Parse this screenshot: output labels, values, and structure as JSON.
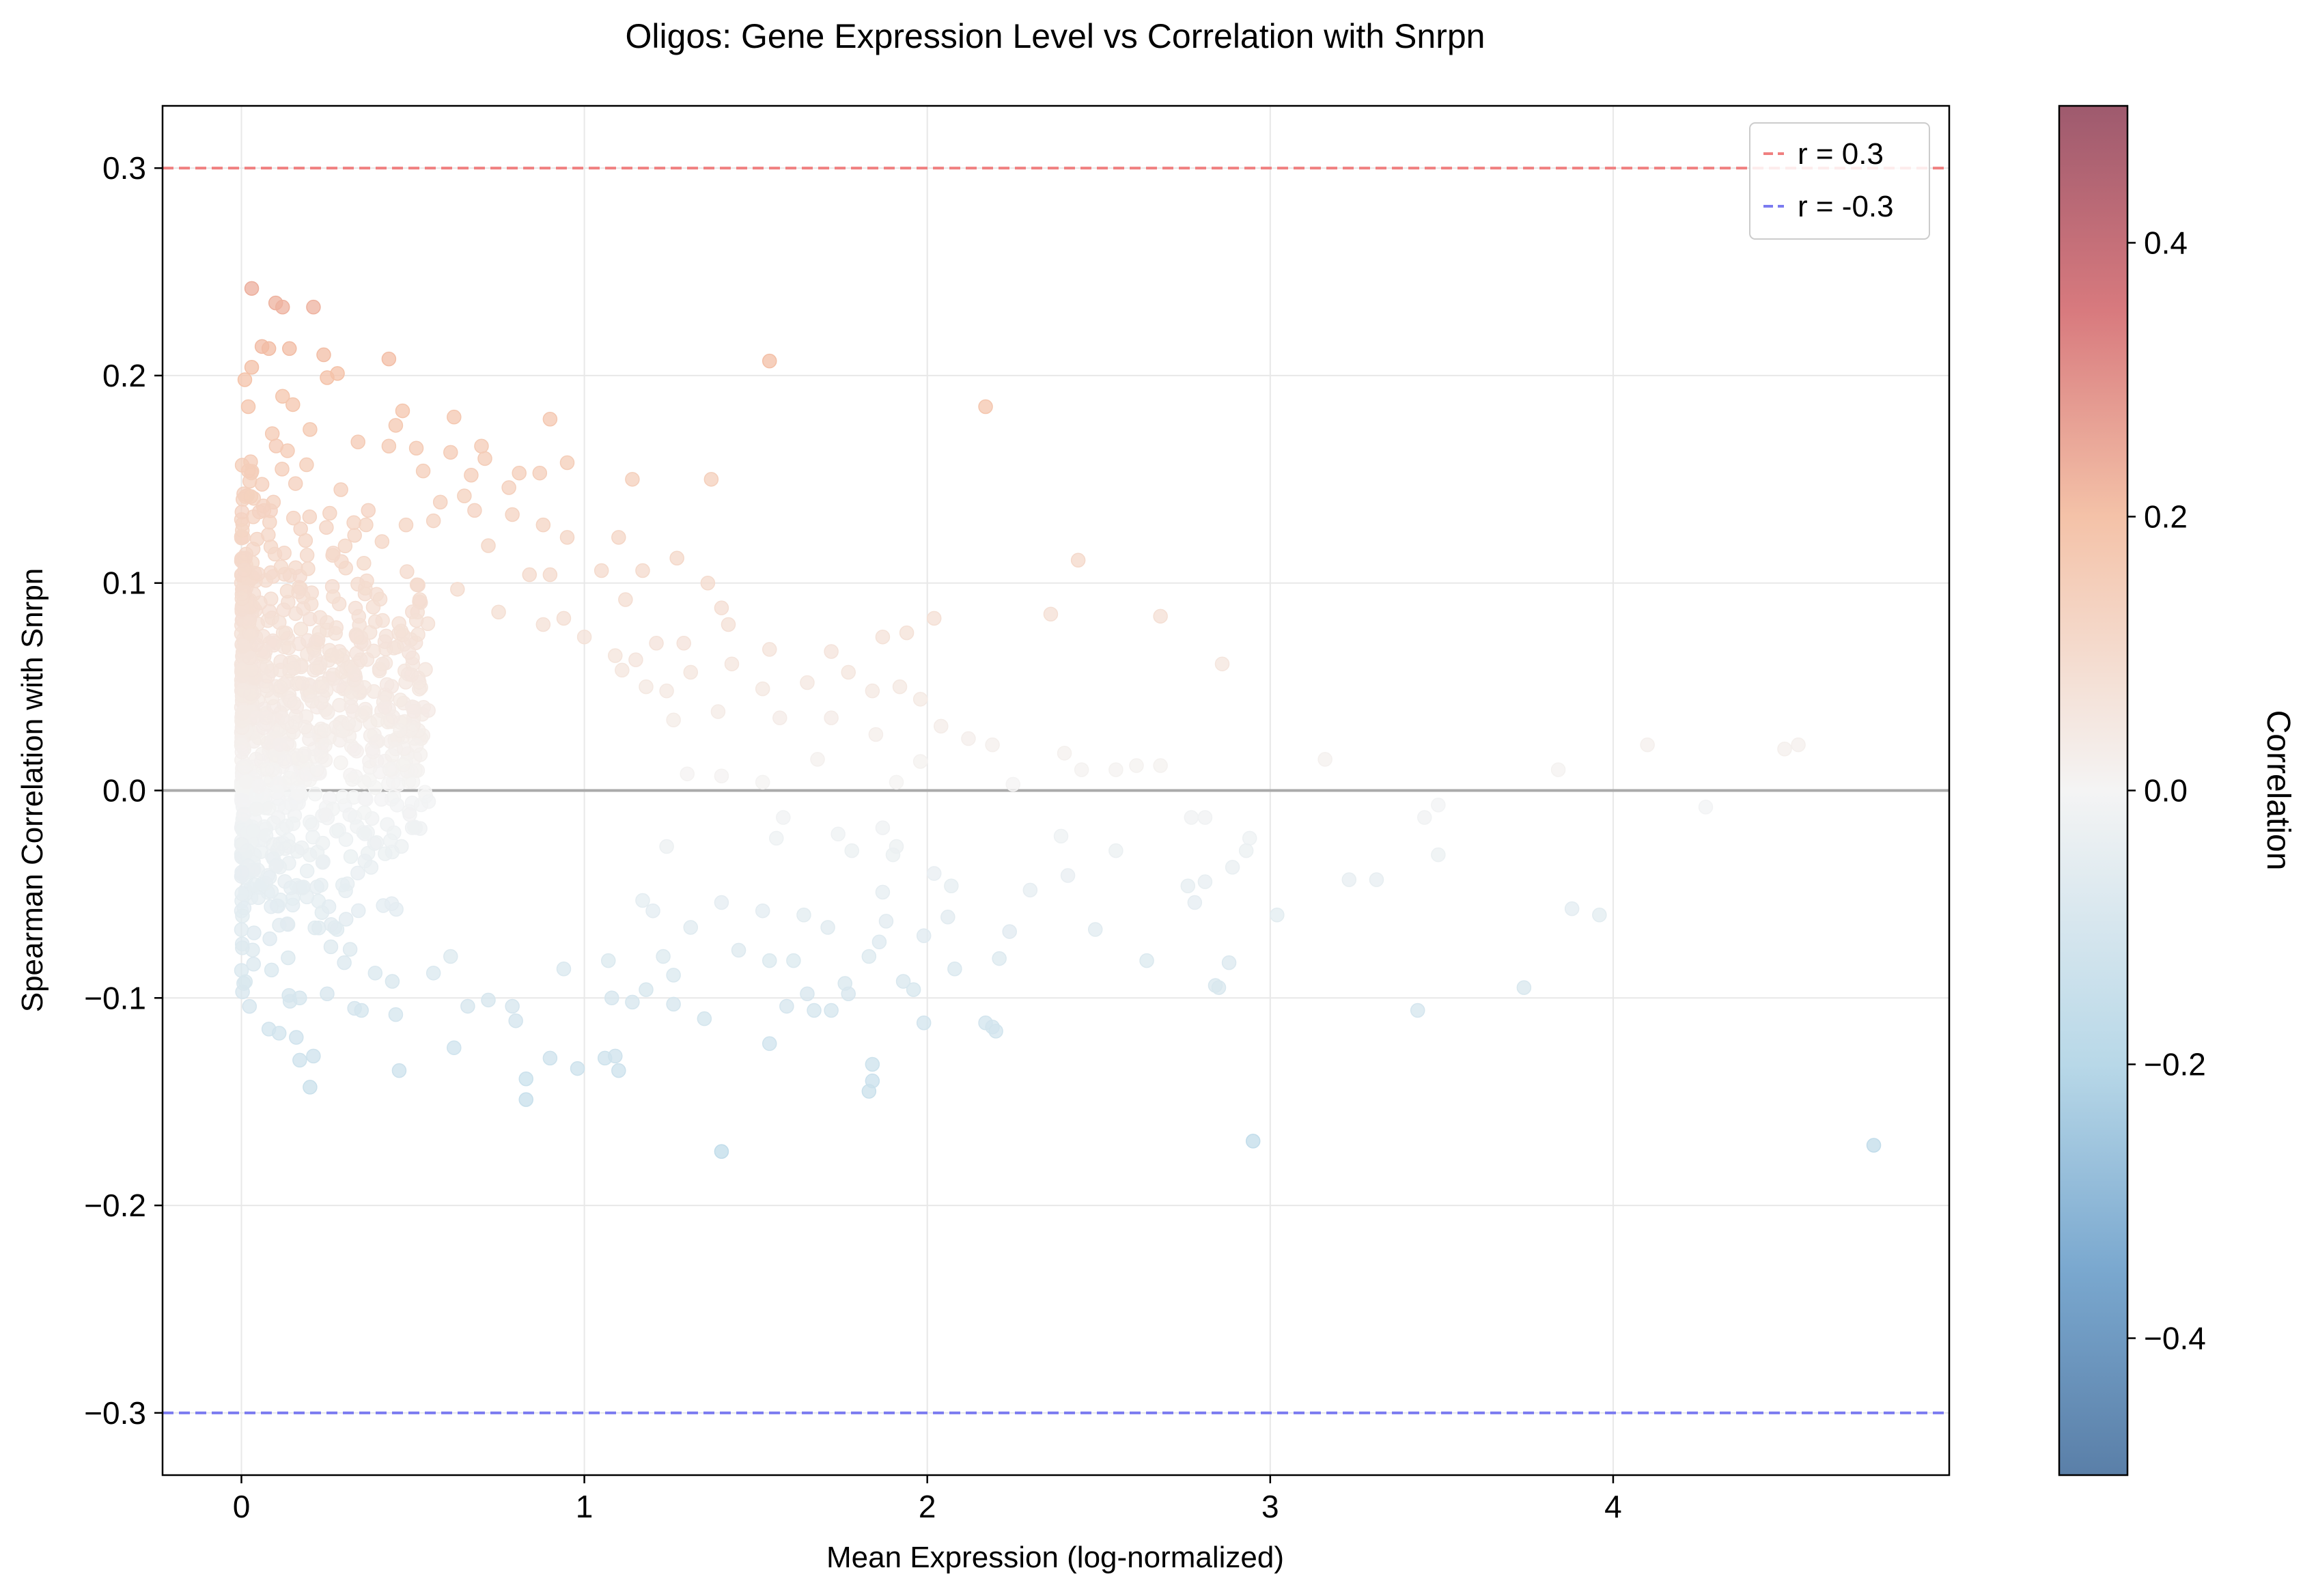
{
  "chart_data": {
    "type": "scatter",
    "title": "Oligos: Gene Expression Level vs Correlation with Snrpn",
    "xlabel": "Mean Expression (log-normalized)",
    "ylabel": "Spearman Correlation with Snrpn",
    "xlim": [
      -0.23,
      4.98
    ],
    "ylim": [
      -0.33,
      0.33
    ],
    "xticks": [
      0,
      1,
      2,
      3,
      4
    ],
    "yticks": [
      -0.3,
      -0.2,
      -0.1,
      0.0,
      0.1,
      0.2,
      0.3
    ],
    "xtick_labels": [
      "0",
      "1",
      "2",
      "3",
      "4"
    ],
    "ytick_labels": [
      "−0.3",
      "−0.2",
      "−0.1",
      "0.0",
      "0.1",
      "0.2",
      "0.3"
    ],
    "grid": true,
    "reference_lines": [
      {
        "y": 0.3,
        "label": "r = 0.3",
        "color": "#f08080",
        "style": "dashed"
      },
      {
        "y": -0.3,
        "label": "r = -0.3",
        "color": "#7b7bf0",
        "style": "dashed"
      },
      {
        "y": 0.0,
        "label": "",
        "color": "#aaaaaa",
        "style": "solid"
      }
    ],
    "legend": {
      "placement": "top-right",
      "entries": [
        "r = 0.3",
        "r = -0.3"
      ]
    },
    "colorbar": {
      "label": "Correlation",
      "range": [
        -0.5,
        0.5
      ],
      "ticks": [
        -0.4,
        -0.2,
        0.0,
        0.2,
        0.4
      ],
      "tick_labels": [
        "−0.4",
        "−0.2",
        "0.0",
        "0.2",
        "0.4"
      ],
      "colormap": "RdBu_r"
    },
    "points": [
      {
        "x": 0.03,
        "y": 0.242
      },
      {
        "x": 0.1,
        "y": 0.235
      },
      {
        "x": 0.12,
        "y": 0.233
      },
      {
        "x": 0.21,
        "y": 0.233
      },
      {
        "x": 0.06,
        "y": 0.214
      },
      {
        "x": 0.08,
        "y": 0.213
      },
      {
        "x": 0.14,
        "y": 0.213
      },
      {
        "x": 0.24,
        "y": 0.21
      },
      {
        "x": 0.43,
        "y": 0.208
      },
      {
        "x": 1.54,
        "y": 0.207
      },
      {
        "x": 0.03,
        "y": 0.204
      },
      {
        "x": 0.28,
        "y": 0.201
      },
      {
        "x": 0.01,
        "y": 0.198
      },
      {
        "x": 0.25,
        "y": 0.199
      },
      {
        "x": 0.12,
        "y": 0.19
      },
      {
        "x": 0.02,
        "y": 0.185
      },
      {
        "x": 0.47,
        "y": 0.183
      },
      {
        "x": 0.15,
        "y": 0.186
      },
      {
        "x": 2.17,
        "y": 0.185
      },
      {
        "x": 0.62,
        "y": 0.18
      },
      {
        "x": 0.9,
        "y": 0.179
      },
      {
        "x": 0.45,
        "y": 0.176
      },
      {
        "x": 0.09,
        "y": 0.172
      },
      {
        "x": 0.2,
        "y": 0.174
      },
      {
        "x": 0.34,
        "y": 0.168
      },
      {
        "x": 0.43,
        "y": 0.166
      },
      {
        "x": 0.7,
        "y": 0.166
      },
      {
        "x": 0.51,
        "y": 0.165
      },
      {
        "x": 0.61,
        "y": 0.163
      },
      {
        "x": 0.71,
        "y": 0.16
      },
      {
        "x": 0.95,
        "y": 0.158
      },
      {
        "x": 0.19,
        "y": 0.157
      },
      {
        "x": 0.53,
        "y": 0.154
      },
      {
        "x": 0.87,
        "y": 0.153
      },
      {
        "x": 0.81,
        "y": 0.153
      },
      {
        "x": 0.67,
        "y": 0.152
      },
      {
        "x": 1.14,
        "y": 0.15
      },
      {
        "x": 1.37,
        "y": 0.15
      },
      {
        "x": 0.78,
        "y": 0.146
      },
      {
        "x": 0.29,
        "y": 0.145
      },
      {
        "x": 0.65,
        "y": 0.142
      },
      {
        "x": 0.58,
        "y": 0.139
      },
      {
        "x": 0.68,
        "y": 0.135
      },
      {
        "x": 0.37,
        "y": 0.135
      },
      {
        "x": 0.79,
        "y": 0.133
      },
      {
        "x": 0.56,
        "y": 0.13
      },
      {
        "x": 0.88,
        "y": 0.128
      },
      {
        "x": 0.48,
        "y": 0.128
      },
      {
        "x": 1.1,
        "y": 0.122
      },
      {
        "x": 0.33,
        "y": 0.123
      },
      {
        "x": 0.95,
        "y": 0.122
      },
      {
        "x": 0.41,
        "y": 0.12
      },
      {
        "x": 0.72,
        "y": 0.118
      },
      {
        "x": 1.27,
        "y": 0.112
      },
      {
        "x": 2.44,
        "y": 0.111
      },
      {
        "x": 1.05,
        "y": 0.106
      },
      {
        "x": 1.17,
        "y": 0.106
      },
      {
        "x": 0.84,
        "y": 0.104
      },
      {
        "x": 0.9,
        "y": 0.104
      },
      {
        "x": 1.36,
        "y": 0.1
      },
      {
        "x": 0.63,
        "y": 0.097
      },
      {
        "x": 1.12,
        "y": 0.092
      },
      {
        "x": 0.52,
        "y": 0.092
      },
      {
        "x": 1.4,
        "y": 0.088
      },
      {
        "x": 0.75,
        "y": 0.086
      },
      {
        "x": 2.36,
        "y": 0.085
      },
      {
        "x": 2.68,
        "y": 0.084
      },
      {
        "x": 2.02,
        "y": 0.083
      },
      {
        "x": 0.94,
        "y": 0.083
      },
      {
        "x": 1.42,
        "y": 0.08
      },
      {
        "x": 0.88,
        "y": 0.08
      },
      {
        "x": 1.94,
        "y": 0.076
      },
      {
        "x": 1.87,
        "y": 0.074
      },
      {
        "x": 1.0,
        "y": 0.074
      },
      {
        "x": 1.21,
        "y": 0.071
      },
      {
        "x": 1.29,
        "y": 0.071
      },
      {
        "x": 1.72,
        "y": 0.067
      },
      {
        "x": 1.54,
        "y": 0.068
      },
      {
        "x": 1.09,
        "y": 0.065
      },
      {
        "x": 1.15,
        "y": 0.063
      },
      {
        "x": 2.86,
        "y": 0.061
      },
      {
        "x": 1.43,
        "y": 0.061
      },
      {
        "x": 1.31,
        "y": 0.057
      },
      {
        "x": 1.77,
        "y": 0.057
      },
      {
        "x": 1.11,
        "y": 0.058
      },
      {
        "x": 1.65,
        "y": 0.052
      },
      {
        "x": 1.18,
        "y": 0.05
      },
      {
        "x": 1.52,
        "y": 0.049
      },
      {
        "x": 1.92,
        "y": 0.05
      },
      {
        "x": 1.98,
        "y": 0.044
      },
      {
        "x": 1.84,
        "y": 0.048
      },
      {
        "x": 1.24,
        "y": 0.048
      },
      {
        "x": 1.39,
        "y": 0.038
      },
      {
        "x": 1.57,
        "y": 0.035
      },
      {
        "x": 1.72,
        "y": 0.035
      },
      {
        "x": 2.04,
        "y": 0.031
      },
      {
        "x": 1.26,
        "y": 0.034
      },
      {
        "x": 1.85,
        "y": 0.027
      },
      {
        "x": 2.12,
        "y": 0.025
      },
      {
        "x": 2.19,
        "y": 0.022
      },
      {
        "x": 2.4,
        "y": 0.018
      },
      {
        "x": 1.98,
        "y": 0.014
      },
      {
        "x": 1.68,
        "y": 0.015
      },
      {
        "x": 3.16,
        "y": 0.015
      },
      {
        "x": 2.55,
        "y": 0.01
      },
      {
        "x": 2.61,
        "y": 0.012
      },
      {
        "x": 2.68,
        "y": 0.012
      },
      {
        "x": 2.45,
        "y": 0.01
      },
      {
        "x": 3.84,
        "y": 0.01
      },
      {
        "x": 4.1,
        "y": 0.022
      },
      {
        "x": 4.5,
        "y": 0.02
      },
      {
        "x": 4.54,
        "y": 0.022
      },
      {
        "x": 2.25,
        "y": 0.003
      },
      {
        "x": 1.91,
        "y": 0.004
      },
      {
        "x": 1.52,
        "y": 0.004
      },
      {
        "x": 1.3,
        "y": 0.008
      },
      {
        "x": 1.4,
        "y": 0.007
      },
      {
        "x": 4.27,
        "y": -0.008
      },
      {
        "x": 3.49,
        "y": -0.007
      },
      {
        "x": 3.45,
        "y": -0.013
      },
      {
        "x": 2.77,
        "y": -0.013
      },
      {
        "x": 2.81,
        "y": -0.013
      },
      {
        "x": 1.58,
        "y": -0.013
      },
      {
        "x": 1.87,
        "y": -0.018
      },
      {
        "x": 1.74,
        "y": -0.021
      },
      {
        "x": 2.94,
        "y": -0.023
      },
      {
        "x": 2.39,
        "y": -0.022
      },
      {
        "x": 1.56,
        "y": -0.023
      },
      {
        "x": 1.91,
        "y": -0.027
      },
      {
        "x": 1.24,
        "y": -0.027
      },
      {
        "x": 1.78,
        "y": -0.029
      },
      {
        "x": 2.55,
        "y": -0.029
      },
      {
        "x": 3.49,
        "y": -0.031
      },
      {
        "x": 2.93,
        "y": -0.029
      },
      {
        "x": 1.9,
        "y": -0.031
      },
      {
        "x": 2.89,
        "y": -0.037
      },
      {
        "x": 2.41,
        "y": -0.041
      },
      {
        "x": 2.02,
        "y": -0.04
      },
      {
        "x": 3.23,
        "y": -0.043
      },
      {
        "x": 3.31,
        "y": -0.043
      },
      {
        "x": 2.81,
        "y": -0.044
      },
      {
        "x": 2.76,
        "y": -0.046
      },
      {
        "x": 2.07,
        "y": -0.046
      },
      {
        "x": 2.3,
        "y": -0.048
      },
      {
        "x": 1.87,
        "y": -0.049
      },
      {
        "x": 1.17,
        "y": -0.053
      },
      {
        "x": 1.4,
        "y": -0.054
      },
      {
        "x": 2.78,
        "y": -0.054
      },
      {
        "x": 1.52,
        "y": -0.058
      },
      {
        "x": 3.88,
        "y": -0.057
      },
      {
        "x": 3.96,
        "y": -0.06
      },
      {
        "x": 3.02,
        "y": -0.06
      },
      {
        "x": 1.2,
        "y": -0.058
      },
      {
        "x": 1.64,
        "y": -0.06
      },
      {
        "x": 2.06,
        "y": -0.061
      },
      {
        "x": 1.88,
        "y": -0.063
      },
      {
        "x": 1.71,
        "y": -0.066
      },
      {
        "x": 1.31,
        "y": -0.066
      },
      {
        "x": 2.49,
        "y": -0.067
      },
      {
        "x": 2.24,
        "y": -0.068
      },
      {
        "x": 1.99,
        "y": -0.07
      },
      {
        "x": 1.86,
        "y": -0.073
      },
      {
        "x": 1.45,
        "y": -0.077
      },
      {
        "x": 1.23,
        "y": -0.08
      },
      {
        "x": 1.61,
        "y": -0.082
      },
      {
        "x": 1.54,
        "y": -0.082
      },
      {
        "x": 1.83,
        "y": -0.08
      },
      {
        "x": 1.07,
        "y": -0.082
      },
      {
        "x": 2.21,
        "y": -0.081
      },
      {
        "x": 2.64,
        "y": -0.082
      },
      {
        "x": 2.88,
        "y": -0.083
      },
      {
        "x": 2.08,
        "y": -0.086
      },
      {
        "x": 1.26,
        "y": -0.089
      },
      {
        "x": 1.93,
        "y": -0.092
      },
      {
        "x": 1.76,
        "y": -0.093
      },
      {
        "x": 1.96,
        "y": -0.096
      },
      {
        "x": 2.84,
        "y": -0.094
      },
      {
        "x": 2.85,
        "y": -0.095
      },
      {
        "x": 3.74,
        "y": -0.095
      },
      {
        "x": 1.18,
        "y": -0.096
      },
      {
        "x": 1.65,
        "y": -0.098
      },
      {
        "x": 1.77,
        "y": -0.098
      },
      {
        "x": 1.08,
        "y": -0.1
      },
      {
        "x": 1.14,
        "y": -0.102
      },
      {
        "x": 1.59,
        "y": -0.104
      },
      {
        "x": 1.26,
        "y": -0.103
      },
      {
        "x": 1.67,
        "y": -0.106
      },
      {
        "x": 1.72,
        "y": -0.106
      },
      {
        "x": 3.43,
        "y": -0.106
      },
      {
        "x": 2.17,
        "y": -0.112
      },
      {
        "x": 1.35,
        "y": -0.11
      },
      {
        "x": 2.19,
        "y": -0.114
      },
      {
        "x": 2.2,
        "y": -0.116
      },
      {
        "x": 1.99,
        "y": -0.112
      },
      {
        "x": 1.54,
        "y": -0.122
      },
      {
        "x": 1.06,
        "y": -0.129
      },
      {
        "x": 1.09,
        "y": -0.128
      },
      {
        "x": 0.98,
        "y": -0.134
      },
      {
        "x": 1.1,
        "y": -0.135
      },
      {
        "x": 0.9,
        "y": -0.129
      },
      {
        "x": 1.84,
        "y": -0.132
      },
      {
        "x": 1.84,
        "y": -0.14
      },
      {
        "x": 1.83,
        "y": -0.145
      },
      {
        "x": 0.83,
        "y": -0.139
      },
      {
        "x": 0.83,
        "y": -0.149
      },
      {
        "x": 1.4,
        "y": -0.174
      },
      {
        "x": 2.95,
        "y": -0.169
      },
      {
        "x": 4.76,
        "y": -0.171
      },
      {
        "x": 0.2,
        "y": -0.143
      },
      {
        "x": 0.46,
        "y": -0.135
      },
      {
        "x": 0.62,
        "y": -0.124
      },
      {
        "x": 0.17,
        "y": -0.13
      },
      {
        "x": 0.21,
        "y": -0.128
      },
      {
        "x": 0.16,
        "y": -0.119
      },
      {
        "x": 0.08,
        "y": -0.115
      },
      {
        "x": 0.11,
        "y": -0.117
      },
      {
        "x": 0.17,
        "y": -0.1
      },
      {
        "x": 0.25,
        "y": -0.098
      },
      {
        "x": 0.33,
        "y": -0.105
      },
      {
        "x": 0.35,
        "y": -0.106
      },
      {
        "x": 0.45,
        "y": -0.108
      },
      {
        "x": 0.66,
        "y": -0.104
      },
      {
        "x": 0.72,
        "y": -0.101
      },
      {
        "x": 0.79,
        "y": -0.104
      },
      {
        "x": 0.8,
        "y": -0.111
      },
      {
        "x": 0.44,
        "y": -0.092
      },
      {
        "x": 0.56,
        "y": -0.088
      },
      {
        "x": 0.39,
        "y": -0.088
      },
      {
        "x": 0.94,
        "y": -0.086
      },
      {
        "x": 0.3,
        "y": -0.083
      },
      {
        "x": 0.61,
        "y": -0.08
      }
    ]
  }
}
